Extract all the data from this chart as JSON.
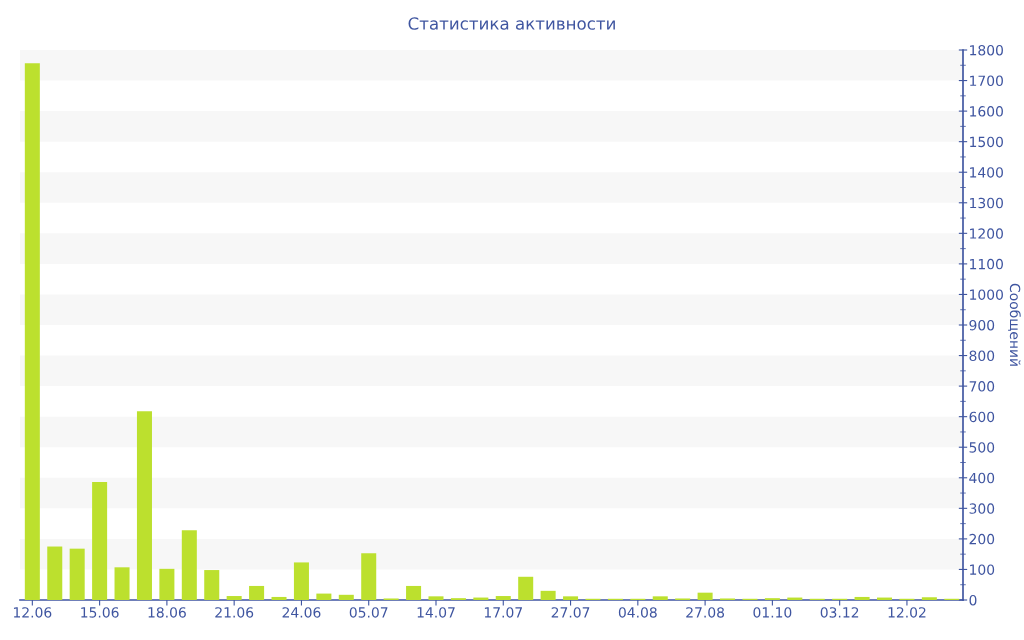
{
  "chart_data": {
    "type": "bar",
    "title": "Статистика активности",
    "ylabel": "Сообщений",
    "categories": [
      "12.06",
      null,
      null,
      "15.06",
      null,
      null,
      "18.06",
      null,
      null,
      "21.06",
      null,
      null,
      "24.06",
      null,
      null,
      "05.07",
      null,
      null,
      "14.07",
      null,
      null,
      "17.07",
      null,
      null,
      "27.07",
      null,
      null,
      "04.08",
      null,
      null,
      "27.08",
      null,
      null,
      "01.10",
      null,
      null,
      "03.12",
      null,
      null,
      "12.02",
      null,
      null
    ],
    "values": [
      1757,
      175,
      168,
      386,
      107,
      618,
      102,
      228,
      98,
      13,
      46,
      10,
      123,
      21,
      17,
      153,
      5,
      46,
      12,
      6,
      8,
      13,
      76,
      30,
      12,
      4,
      4,
      4,
      12,
      5,
      24,
      5,
      4,
      6,
      8,
      4,
      4,
      10,
      8,
      4,
      9,
      4
    ],
    "color": "#bce02e",
    "ylim": [
      0,
      1800
    ],
    "yticks": [
      0,
      100,
      200,
      300,
      400,
      500,
      600,
      700,
      800,
      900,
      1000,
      1100,
      1200,
      1300,
      1400,
      1500,
      1600,
      1700,
      1800
    ],
    "bands": [
      {
        "axis": "y",
        "from": 100,
        "to": 200,
        "color": "#f7f7f7"
      },
      {
        "axis": "y",
        "from": 300,
        "to": 400,
        "color": "#f7f7f7"
      },
      {
        "axis": "y",
        "from": 500,
        "to": 600,
        "color": "#f7f7f7"
      },
      {
        "axis": "y",
        "from": 700,
        "to": 800,
        "color": "#f7f7f7"
      },
      {
        "axis": "y",
        "from": 900,
        "to": 1000,
        "color": "#f7f7f7"
      },
      {
        "axis": "y",
        "from": 1100,
        "to": 1200,
        "color": "#f7f7f7"
      },
      {
        "axis": "y",
        "from": 1300,
        "to": 1400,
        "color": "#f7f7f7"
      },
      {
        "axis": "y",
        "from": 1500,
        "to": 1600,
        "color": "#f7f7f7"
      },
      {
        "axis": "y",
        "from": 1700,
        "to": 1800,
        "color": "#f7f7f7"
      }
    ]
  }
}
